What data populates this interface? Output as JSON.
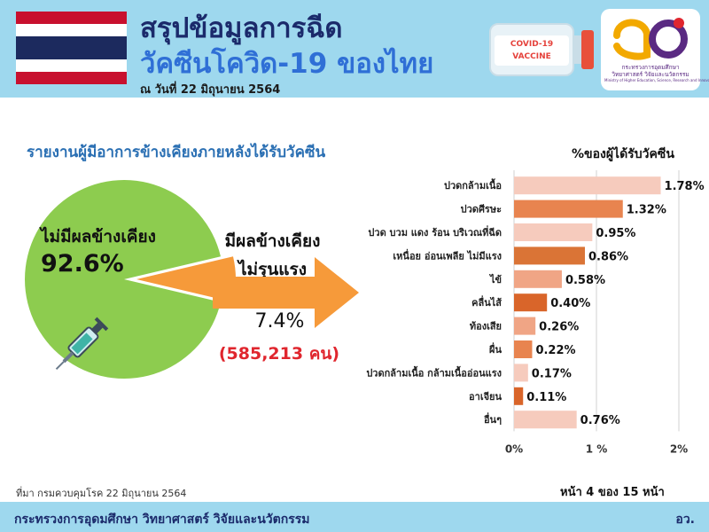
{
  "header": {
    "title_line1": "สรุปข้อมูลการฉีด",
    "title_line2": "วัคซีนโควิด-19 ของไทย",
    "as_of": "ณ วันที่ 22 มิถุนายน 2564",
    "vial_label_line1": "COVID-19",
    "vial_label_line2": "VACCINE",
    "logo_text_line1": "กระทรวงการอุดมศึกษา",
    "logo_text_line2": "วิทยาศาสตร์ วิจัยและนวัตกรรม",
    "logo_text_line3": "Ministry of Higher Education, Science, Research and Innovation"
  },
  "colors": {
    "header_bg": "#9ed8ee",
    "title_dark": "#1b2a6b",
    "title_blue": "#2f6fd6",
    "subtitle": "#2a6fb3",
    "pie_no_side_effect": "#8dcc4f",
    "pie_side_effect": "#f69a3a",
    "highlight_red": "#e0262e"
  },
  "left": {
    "subtitle": "รายงานผู้มีอาการข้างเคียงภายหลังได้รับวัคซีน",
    "no_side_effect_label": "ไม่มีผลข้างเคียง",
    "no_side_effect_pct": "92.6%",
    "side_effect_label_line1": "มีผลข้างเคียง",
    "side_effect_label_line2": "ไม่รุนแรง",
    "side_effect_pct": "7.4%",
    "side_effect_count": "(585,213 คน)"
  },
  "chart_data": [
    {
      "type": "pie",
      "categories": [
        "ไม่มีผลข้างเคียง",
        "มีผลข้างเคียงไม่รุนแรง"
      ],
      "values": [
        92.6,
        7.4
      ]
    },
    {
      "type": "bar",
      "orientation": "horizontal",
      "title": "%ของผู้ได้รับวัคซีน",
      "categories": [
        "ปวดกล้ามเนื้อ",
        "ปวดศีรษะ",
        "ปวด บวม แดง ร้อน บริเวณที่ฉีด",
        "เหนื่อย อ่อนเพลีย ไม่มีแรง",
        "ไข้",
        "คลื่นไส้",
        "ท้องเสีย",
        "ผื่น",
        "ปวดกล้ามเนื้อ กล้ามเนื้ออ่อนแรง",
        "อาเจียน",
        "อื่นๆ"
      ],
      "values": [
        1.78,
        1.32,
        0.95,
        0.86,
        0.58,
        0.4,
        0.26,
        0.22,
        0.17,
        0.11,
        0.76
      ],
      "value_labels": [
        "1.78%",
        "1.32%",
        "0.95%",
        "0.86%",
        "0.58%",
        "0.40%",
        "0.26%",
        "0.22%",
        "0.17%",
        "0.11%",
        "0.76%"
      ],
      "bar_colors": [
        "#f6cbbd",
        "#e8844f",
        "#f6cbbd",
        "#da7436",
        "#f0a585",
        "#d9652a",
        "#f0a585",
        "#e8844f",
        "#f6cbbd",
        "#d9652a",
        "#f6cbbd"
      ],
      "xlim": [
        0,
        2
      ],
      "xticks": [
        0,
        1,
        2
      ],
      "xtick_labels": [
        "0%",
        "1 %",
        "2%"
      ],
      "grid": "vertical"
    }
  ],
  "footer": {
    "source": "ที่มา กรมควบคุมโรค 22 มิถุนายน 2564",
    "page": "หน้า 4 ของ 15 หน้า",
    "ministry": "กระทรวงการอุดมศึกษา วิทยาศาสตร์ วิจัยและนวัตกรรม",
    "abbr": "อว."
  }
}
